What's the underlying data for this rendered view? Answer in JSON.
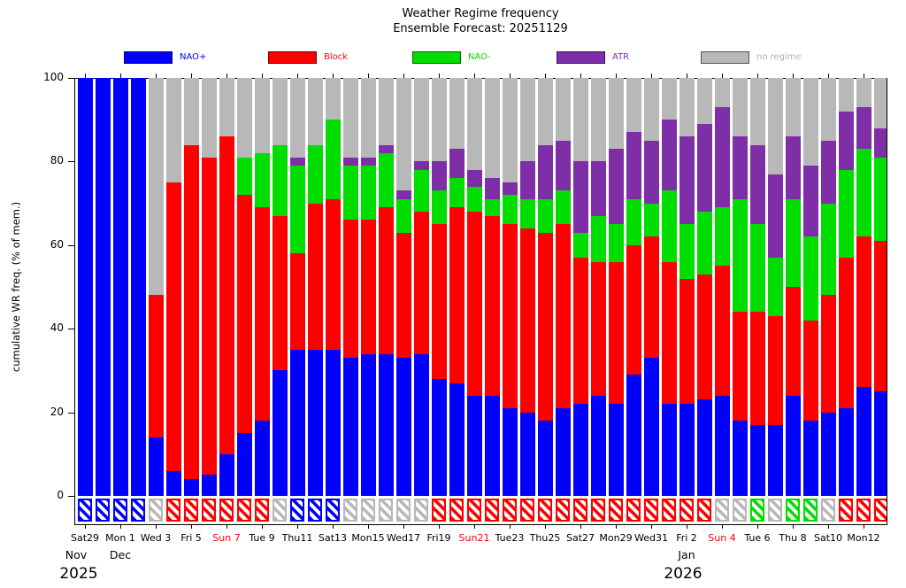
{
  "title": "Weather Regime frequency",
  "subtitle": "Ensemble Forecast: 20251129",
  "y_axis": {
    "label": "cumulative WR freq. (% of mem.)",
    "ticks": [
      0,
      20,
      40,
      60,
      80,
      100
    ]
  },
  "colors": {
    "nao_plus": "#0000ff",
    "block": "#ff0000",
    "nao_minus": "#00dd00",
    "atr": "#7e2fa8",
    "none": "#b8b8b8",
    "sunday_label": "#ff0000",
    "weekday_label": "#000000",
    "no_regime_text": "#b0b0b0"
  },
  "legend": {
    "position": "top",
    "items": [
      {
        "key": "nao_plus",
        "label": "NAO+"
      },
      {
        "key": "block",
        "label": "Block"
      },
      {
        "key": "nao_minus",
        "label": "NAO-"
      },
      {
        "key": "atr",
        "label": "ATR"
      },
      {
        "key": "none",
        "label": "no regime"
      }
    ]
  },
  "chart_data": {
    "type": "bar",
    "stacked": true,
    "title": "Weather Regime frequency",
    "subtitle": "Ensemble Forecast: 20251129",
    "ylabel": "cumulative WR freq. (% of mem.)",
    "ylim": [
      0,
      100
    ],
    "grid": false,
    "legend_position": "top",
    "series_order": [
      "NAO+",
      "Block",
      "NAO-",
      "ATR",
      "no regime"
    ],
    "series_keys": [
      "nao_plus",
      "block",
      "nao_minus",
      "atr",
      "none"
    ],
    "note": "values are percent of ensemble members per day; dominant = hatched box color under each bar",
    "month_labels": [
      {
        "text": "Nov",
        "bar_index": 0
      },
      {
        "text": "Dec",
        "bar_index": 2
      },
      {
        "text": "Jan",
        "bar_index": 34
      }
    ],
    "year_labels": [
      {
        "text": "2025",
        "bar_index": 0
      },
      {
        "text": "2026",
        "bar_index": 34
      }
    ],
    "bars": [
      {
        "date": "Sat Nov 29",
        "label": "Sat29",
        "sunday": false,
        "values": [
          100,
          0,
          0,
          0,
          0
        ],
        "dominant": "nao_plus"
      },
      {
        "date": "Sun Nov 30",
        "label": "",
        "sunday": true,
        "values": [
          100,
          0,
          0,
          0,
          0
        ],
        "dominant": "nao_plus"
      },
      {
        "date": "Mon Dec 1",
        "label": "Mon 1",
        "sunday": false,
        "values": [
          100,
          0,
          0,
          0,
          0
        ],
        "dominant": "nao_plus"
      },
      {
        "date": "Tue Dec 2",
        "label": "",
        "sunday": false,
        "values": [
          100,
          0,
          0,
          0,
          0
        ],
        "dominant": "nao_plus"
      },
      {
        "date": "Wed Dec 3",
        "label": "Wed 3",
        "sunday": false,
        "values": [
          14,
          34,
          0,
          0,
          52
        ],
        "dominant": "none"
      },
      {
        "date": "Thu Dec 4",
        "label": "",
        "sunday": false,
        "values": [
          6,
          69,
          0,
          0,
          25
        ],
        "dominant": "block"
      },
      {
        "date": "Fri Dec 5",
        "label": "Fri 5",
        "sunday": false,
        "values": [
          4,
          80,
          0,
          0,
          16
        ],
        "dominant": "block"
      },
      {
        "date": "Sat Dec 6",
        "label": "",
        "sunday": false,
        "values": [
          5,
          76,
          0,
          0,
          19
        ],
        "dominant": "block"
      },
      {
        "date": "Sun Dec 7",
        "label": "Sun 7",
        "sunday": true,
        "values": [
          10,
          76,
          0,
          0,
          14
        ],
        "dominant": "block"
      },
      {
        "date": "Mon Dec 8",
        "label": "",
        "sunday": false,
        "values": [
          15,
          57,
          9,
          0,
          19
        ],
        "dominant": "block"
      },
      {
        "date": "Tue Dec 9",
        "label": "Tue 9",
        "sunday": false,
        "values": [
          18,
          51,
          13,
          0,
          18
        ],
        "dominant": "block"
      },
      {
        "date": "Wed Dec 10",
        "label": "",
        "sunday": false,
        "values": [
          30,
          37,
          17,
          0,
          16
        ],
        "dominant": "none"
      },
      {
        "date": "Thu Dec 11",
        "label": "Thu11",
        "sunday": false,
        "values": [
          35,
          23,
          21,
          2,
          19
        ],
        "dominant": "nao_plus"
      },
      {
        "date": "Fri Dec 12",
        "label": "",
        "sunday": false,
        "values": [
          35,
          35,
          14,
          0,
          16
        ],
        "dominant": "nao_plus"
      },
      {
        "date": "Sat Dec 13",
        "label": "Sat13",
        "sunday": false,
        "values": [
          35,
          36,
          19,
          0,
          10
        ],
        "dominant": "nao_plus"
      },
      {
        "date": "Sun Dec 14",
        "label": "",
        "sunday": true,
        "values": [
          33,
          33,
          13,
          2,
          19
        ],
        "dominant": "none"
      },
      {
        "date": "Mon Dec 15",
        "label": "Mon15",
        "sunday": false,
        "values": [
          34,
          32,
          13,
          2,
          19
        ],
        "dominant": "none"
      },
      {
        "date": "Tue Dec 16",
        "label": "",
        "sunday": false,
        "values": [
          34,
          35,
          13,
          2,
          16
        ],
        "dominant": "none"
      },
      {
        "date": "Wed Dec 17",
        "label": "Wed17",
        "sunday": false,
        "values": [
          33,
          30,
          8,
          2,
          27
        ],
        "dominant": "none"
      },
      {
        "date": "Thu Dec 18",
        "label": "",
        "sunday": false,
        "values": [
          34,
          34,
          10,
          2,
          20
        ],
        "dominant": "none"
      },
      {
        "date": "Fri Dec 19",
        "label": "Fri19",
        "sunday": false,
        "values": [
          28,
          37,
          8,
          7,
          20
        ],
        "dominant": "block"
      },
      {
        "date": "Sat Dec 20",
        "label": "",
        "sunday": false,
        "values": [
          27,
          42,
          7,
          7,
          17
        ],
        "dominant": "block"
      },
      {
        "date": "Sun Dec 21",
        "label": "Sun21",
        "sunday": true,
        "values": [
          24,
          44,
          6,
          4,
          22
        ],
        "dominant": "block"
      },
      {
        "date": "Mon Dec 22",
        "label": "",
        "sunday": false,
        "values": [
          24,
          43,
          4,
          5,
          24
        ],
        "dominant": "block"
      },
      {
        "date": "Tue Dec 23",
        "label": "Tue23",
        "sunday": false,
        "values": [
          21,
          44,
          7,
          3,
          25
        ],
        "dominant": "block"
      },
      {
        "date": "Wed Dec 24",
        "label": "",
        "sunday": false,
        "values": [
          20,
          44,
          7,
          9,
          20
        ],
        "dominant": "block"
      },
      {
        "date": "Thu Dec 25",
        "label": "Thu25",
        "sunday": false,
        "values": [
          18,
          45,
          8,
          13,
          16
        ],
        "dominant": "block"
      },
      {
        "date": "Fri Dec 26",
        "label": "",
        "sunday": false,
        "values": [
          21,
          44,
          8,
          12,
          15
        ],
        "dominant": "block"
      },
      {
        "date": "Sat Dec 27",
        "label": "Sat27",
        "sunday": false,
        "values": [
          22,
          35,
          6,
          17,
          20
        ],
        "dominant": "block"
      },
      {
        "date": "Sun Dec 28",
        "label": "",
        "sunday": true,
        "values": [
          24,
          32,
          11,
          13,
          20
        ],
        "dominant": "block"
      },
      {
        "date": "Mon Dec 29",
        "label": "Mon29",
        "sunday": false,
        "values": [
          22,
          34,
          9,
          18,
          17
        ],
        "dominant": "block"
      },
      {
        "date": "Tue Dec 30",
        "label": "",
        "sunday": false,
        "values": [
          29,
          31,
          11,
          16,
          13
        ],
        "dominant": "block"
      },
      {
        "date": "Wed Dec 31",
        "label": "Wed31",
        "sunday": false,
        "values": [
          33,
          29,
          8,
          15,
          15
        ],
        "dominant": "block"
      },
      {
        "date": "Thu Jan 1",
        "label": "",
        "sunday": false,
        "values": [
          22,
          34,
          17,
          17,
          10
        ],
        "dominant": "block"
      },
      {
        "date": "Fri Jan 2",
        "label": "Fri 2",
        "sunday": false,
        "values": [
          22,
          30,
          13,
          21,
          14
        ],
        "dominant": "block"
      },
      {
        "date": "Sat Jan 3",
        "label": "",
        "sunday": false,
        "values": [
          23,
          30,
          15,
          21,
          11
        ],
        "dominant": "block"
      },
      {
        "date": "Sun Jan 4",
        "label": "Sun 4",
        "sunday": true,
        "values": [
          24,
          31,
          14,
          24,
          7
        ],
        "dominant": "none"
      },
      {
        "date": "Mon Jan 5",
        "label": "",
        "sunday": false,
        "values": [
          18,
          26,
          27,
          15,
          14
        ],
        "dominant": "none"
      },
      {
        "date": "Tue Jan 6",
        "label": "Tue 6",
        "sunday": false,
        "values": [
          17,
          27,
          21,
          19,
          16
        ],
        "dominant": "nao_minus"
      },
      {
        "date": "Wed Jan 7",
        "label": "",
        "sunday": false,
        "values": [
          17,
          26,
          14,
          20,
          23
        ],
        "dominant": "none"
      },
      {
        "date": "Thu Jan 8",
        "label": "Thu 8",
        "sunday": false,
        "values": [
          24,
          26,
          21,
          15,
          14
        ],
        "dominant": "nao_minus"
      },
      {
        "date": "Fri Jan 9",
        "label": "",
        "sunday": false,
        "values": [
          18,
          24,
          20,
          17,
          21
        ],
        "dominant": "nao_minus"
      },
      {
        "date": "Sat Jan 10",
        "label": "Sat10",
        "sunday": false,
        "values": [
          20,
          28,
          22,
          15,
          15
        ],
        "dominant": "none"
      },
      {
        "date": "Sun Jan 11",
        "label": "",
        "sunday": true,
        "values": [
          21,
          36,
          21,
          14,
          8
        ],
        "dominant": "block"
      },
      {
        "date": "Mon Jan 12",
        "label": "Mon12",
        "sunday": false,
        "values": [
          26,
          36,
          21,
          10,
          7
        ],
        "dominant": "block"
      },
      {
        "date": "Tue Jan 13",
        "label": "",
        "sunday": false,
        "values": [
          25,
          36,
          20,
          7,
          12
        ],
        "dominant": "block"
      }
    ]
  }
}
